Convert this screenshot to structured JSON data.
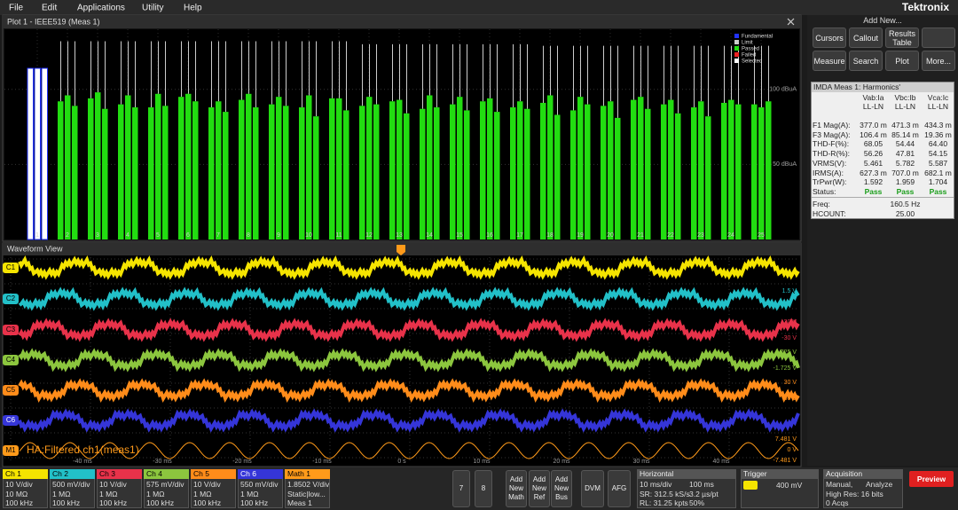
{
  "menu": [
    "File",
    "Edit",
    "Applications",
    "Utility",
    "Help"
  ],
  "brand": "Tektronix",
  "plot_panel": {
    "title": "Plot 1 - IEEE519 (Meas 1)"
  },
  "chart_data": {
    "type": "bar",
    "categories": [
      "1",
      "2",
      "3",
      "4",
      "5",
      "6",
      "7",
      "8",
      "9",
      "10",
      "11",
      "12",
      "13",
      "14",
      "15",
      "16",
      "17",
      "18",
      "19",
      "20",
      "21",
      "22",
      "23",
      "24",
      "25"
    ],
    "series": [
      {
        "color": "#22dd11",
        "values": [
          114,
          92,
          94,
          90,
          88,
          95,
          88,
          93,
          90,
          88,
          94,
          89,
          92,
          87,
          90,
          92,
          88,
          91,
          86,
          89,
          93,
          90,
          88,
          91,
          90
        ]
      },
      {
        "color": "#22dd11",
        "values": [
          114,
          96,
          98,
          96,
          97,
          97,
          92,
          97,
          95,
          96,
          94,
          95,
          93,
          96,
          95,
          94,
          92,
          96,
          95,
          92,
          95,
          93,
          92,
          93,
          88
        ]
      },
      {
        "color": "#22dd11",
        "values": [
          114,
          89,
          87,
          88,
          89,
          92,
          85,
          88,
          89,
          82,
          86,
          90,
          84,
          88,
          86,
          85,
          87,
          83,
          90,
          81,
          87,
          84,
          82,
          90,
          92
        ]
      }
    ],
    "limits": [
      null,
      132,
      132,
      132,
      132,
      132,
      132,
      132,
      132,
      132,
      132,
      130,
      130,
      130,
      130,
      130,
      130,
      129,
      129,
      129,
      129,
      129,
      129,
      129,
      129
    ],
    "limit_color": "#cccccc",
    "selected_category": "1",
    "selected_color": "#ffffff",
    "selected_outline": "#2233ff",
    "ylim": [
      0,
      140
    ],
    "yticks": [
      {
        "value": 100,
        "label": "100 dBuA"
      },
      {
        "value": 50,
        "label": "50 dBuA"
      }
    ],
    "grid": true,
    "legend": [
      {
        "name": "Fundamental",
        "color": "#2233ff"
      },
      {
        "name": "Limit",
        "color": "#cccccc"
      },
      {
        "name": "Passed",
        "color": "#22dd11"
      },
      {
        "name": "Failed",
        "color": "#ee2222"
      },
      {
        "name": "Selected",
        "color": "#ffffff"
      }
    ]
  },
  "waveform_view": {
    "title": "Waveform View",
    "channels": [
      {
        "label": "C1",
        "color": "#f5e400",
        "scale_labels": []
      },
      {
        "label": "C2",
        "color": "#22c0c8",
        "scale_labels": [
          "1.5 V"
        ]
      },
      {
        "label": "C3",
        "color": "#e8324a",
        "scale_labels": [
          "30 V",
          "-30 V"
        ]
      },
      {
        "label": "C4",
        "color": "#8cc63e",
        "scale_labels": [
          "1.725 V",
          "-1.725 V"
        ]
      },
      {
        "label": "C5",
        "color": "#ff8c1a",
        "scale_labels": [
          "30 V",
          "-30 V"
        ]
      },
      {
        "label": "C6",
        "color": "#3535d8",
        "scale_labels": []
      }
    ],
    "math": {
      "label": "M1",
      "name": "HA:Filtered ch1(meas1)",
      "color": "#ff9a1a",
      "scale_labels": [
        "7.481 V",
        "0 V",
        "-7.481 V"
      ]
    },
    "time_labels": [
      "-40 ms",
      "-30 ms",
      "-20 ms",
      "-10 ms",
      "0 s",
      "10 ms",
      "20 ms",
      "30 ms",
      "40 ms"
    ]
  },
  "side_panel": {
    "title": "Add New...",
    "buttons": [
      "Cursors",
      "Callout",
      "Results Table",
      "Measure",
      "Search",
      "Plot",
      "More..."
    ],
    "results": {
      "title": "IMDA Meas 1: Harmonics'",
      "columns": [
        "Vab:Ia",
        "Vbc:Ib",
        "Vca:Ic"
      ],
      "subheaders": [
        "LL-LN",
        "LL-LN",
        "LL-LN"
      ],
      "rows": [
        [
          "F1 Mag(A):",
          "377.0 m",
          "471.3 m",
          "434.3 m"
        ],
        [
          "F3 Mag(A):",
          "106.4 m",
          "85.14 m",
          "19.36 m"
        ],
        [
          "THD-F(%):",
          "68.05",
          "54.44",
          "64.40"
        ],
        [
          "THD-R(%):",
          "56.26",
          "47.81",
          "54.15"
        ],
        [
          "VRMS(V):",
          "5.461",
          "5.782",
          "5.587"
        ],
        [
          "IRMS(A):",
          "627.3 m",
          "707.0 m",
          "682.1 m"
        ],
        [
          "TrPwr(W):",
          "1.592",
          "1.959",
          "1.704"
        ],
        [
          "Status:",
          "Pass",
          "Pass",
          "Pass"
        ]
      ],
      "footer": [
        [
          "Freq:",
          "160.5 Hz"
        ],
        [
          "HCOUNT:",
          "25.00"
        ]
      ]
    }
  },
  "status_bar": {
    "channels": [
      {
        "name": "Ch 1",
        "color": "#f5e400",
        "lines": [
          "10 V/div",
          "10 MΩ",
          "100 kHz"
        ]
      },
      {
        "name": "Ch 2",
        "color": "#22c0c8",
        "lines": [
          "500 mV/div",
          "1 MΩ",
          "100 kHz"
        ]
      },
      {
        "name": "Ch 3",
        "color": "#e8324a",
        "lines": [
          "10 V/div",
          "1 MΩ",
          "100 kHz"
        ]
      },
      {
        "name": "Ch 4",
        "color": "#8cc63e",
        "lines": [
          "575 mV/div",
          "1 MΩ",
          "100 kHz"
        ]
      },
      {
        "name": "Ch 5",
        "color": "#ff8c1a",
        "lines": [
          "10 V/div",
          "1 MΩ",
          "100 kHz"
        ]
      },
      {
        "name": "Ch 6",
        "color": "#3535d8",
        "lines": [
          "550 mV/div",
          "1 MΩ",
          "100 kHz"
        ]
      },
      {
        "name": "Math 1",
        "color": "#ff9a1a",
        "lines": [
          "1.8502 V/div",
          "Static|low...",
          "Meas 1"
        ]
      }
    ],
    "buttons": [
      "7",
      "8",
      "Add New Math",
      "Add New Ref",
      "Add New Bus",
      "DVM",
      "AFG"
    ],
    "horizontal": {
      "title": "Horizontal",
      "lines": [
        [
          "10 ms/div",
          "100 ms"
        ],
        [
          "SR: 312.5 kS/s",
          "3.2 µs/pt"
        ],
        [
          "RL: 31.25 kpts",
          "50%"
        ]
      ]
    },
    "trigger": {
      "title": "Trigger",
      "level": "400 mV"
    },
    "acquisition": {
      "title": "Acquisition",
      "lines": [
        [
          "Manual,",
          "Analyze"
        ],
        [
          "High Res: 16 bits",
          ""
        ],
        [
          "0 Acqs",
          ""
        ]
      ]
    },
    "preview": "Preview"
  }
}
